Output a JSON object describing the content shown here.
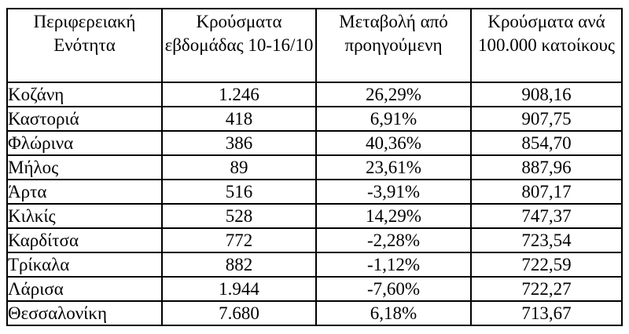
{
  "colors": {
    "background": "#ffffff",
    "text": "#000000",
    "border": "#000000"
  },
  "chart_data": {
    "type": "table",
    "columns": [
      "Περιφερειακή Ενότητα",
      "Κρούσματα εβδομάδας 10-16/10",
      "Μεταβολή από προηγούμενη",
      "Κρούσματα ανά 100.000 κατοίκους"
    ],
    "rows": [
      {
        "region": "Κοζάνη",
        "cases_week": "1.246",
        "change": "26,29%",
        "per_100k": "908,16"
      },
      {
        "region": "Καστοριά",
        "cases_week": "418",
        "change": "6,91%",
        "per_100k": "907,75"
      },
      {
        "region": "Φλώρινα",
        "cases_week": "386",
        "change": "40,36%",
        "per_100k": "854,70"
      },
      {
        "region": "Μήλος",
        "cases_week": "89",
        "change": "23,61%",
        "per_100k": "887,96"
      },
      {
        "region": "Άρτα",
        "cases_week": "516",
        "change": "-3,91%",
        "per_100k": "807,17"
      },
      {
        "region": "Κιλκίς",
        "cases_week": "528",
        "change": "14,29%",
        "per_100k": "747,37"
      },
      {
        "region": "Καρδίτσα",
        "cases_week": "772",
        "change": "-2,28%",
        "per_100k": "723,54"
      },
      {
        "region": "Τρίκαλα",
        "cases_week": "882",
        "change": "-1,12%",
        "per_100k": "722,59"
      },
      {
        "region": "Λάρισα",
        "cases_week": "1.944",
        "change": "-7,60%",
        "per_100k": "722,27"
      },
      {
        "region": "Θεσσαλονίκη",
        "cases_week": "7.680",
        "change": "6,18%",
        "per_100k": "713,67"
      }
    ],
    "values_numeric": {
      "cases_week": [
        1246,
        418,
        386,
        89,
        516,
        528,
        772,
        882,
        1944,
        7680
      ],
      "change_pct": [
        26.29,
        6.91,
        40.36,
        23.61,
        -3.91,
        14.29,
        -2.28,
        -1.12,
        -7.6,
        6.18
      ],
      "per_100k": [
        908.16,
        907.75,
        854.7,
        887.96,
        807.17,
        747.37,
        723.54,
        722.59,
        722.27,
        713.67
      ]
    }
  }
}
